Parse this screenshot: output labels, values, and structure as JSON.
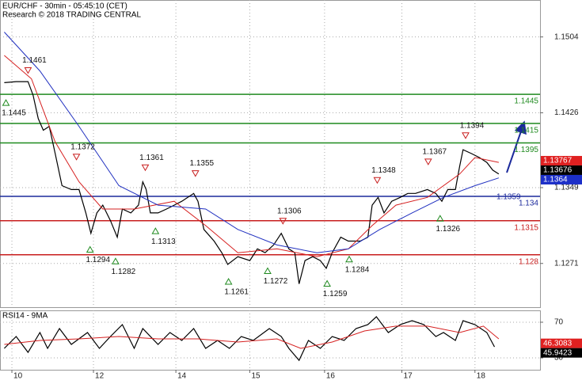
{
  "chart_data": [
    {
      "type": "line",
      "title": "EUR/CHF - 30min - 05:45:10 (CET)",
      "subtitle": "Research © 2018 TRADING CENTRAL",
      "xlim": [
        -14,
        621.6
      ],
      "xticks": [
        {
          "value": 0,
          "label": "10"
        },
        {
          "value": 96,
          "label": "12"
        },
        {
          "value": 193,
          "label": "14"
        },
        {
          "value": 280,
          "label": "15"
        },
        {
          "value": 368,
          "label": "16"
        },
        {
          "value": 459,
          "label": "17"
        },
        {
          "value": 545,
          "label": "18"
        }
      ],
      "ylim": [
        1.1226,
        1.1542
      ],
      "yticks": [
        1.1271,
        1.1349,
        1.1426,
        1.1504
      ],
      "grid": true,
      "series": [
        {
          "color": "#000000",
          "x": [
            -9,
            5,
            19,
            25,
            31,
            37,
            44,
            51,
            59,
            70,
            79,
            87,
            93,
            100,
            107,
            116,
            124,
            130,
            140,
            149,
            154,
            158,
            163,
            172,
            182,
            191,
            200,
            214,
            219,
            226,
            238,
            247,
            254,
            266,
            280,
            289,
            298,
            308,
            317,
            326,
            333,
            338,
            345,
            354,
            363,
            370,
            377,
            387,
            396,
            410,
            419,
            424,
            431,
            438,
            447,
            457,
            466,
            475,
            489,
            499,
            506,
            513,
            522,
            527,
            531,
            541,
            550,
            559,
            566,
            573
          ],
          "values": [
            1.1457,
            1.1458,
            1.1458,
            1.1444,
            1.142,
            1.1408,
            1.1412,
            1.1384,
            1.1351,
            1.1347,
            1.1347,
            1.1323,
            1.1302,
            1.1323,
            1.1331,
            1.1315,
            1.1298,
            1.1327,
            1.1323,
            1.1331,
            1.1355,
            1.1347,
            1.1323,
            1.1323,
            1.1327,
            1.1331,
            1.1335,
            1.1343,
            1.1335,
            1.1306,
            1.1294,
            1.1282,
            1.127,
            1.1278,
            1.1274,
            1.1286,
            1.1282,
            1.129,
            1.1302,
            1.1286,
            1.1282,
            1.125,
            1.1274,
            1.1278,
            1.1274,
            1.1266,
            1.1282,
            1.1298,
            1.1294,
            1.1294,
            1.1298,
            1.1331,
            1.1339,
            1.1323,
            1.1335,
            1.1339,
            1.1343,
            1.1343,
            1.1347,
            1.1343,
            1.1335,
            1.1347,
            1.1347,
            1.1371,
            1.1388,
            1.1384,
            1.138,
            1.1375,
            1.1367,
            1.1363
          ]
        },
        {
          "color": "#d62020",
          "x": [
            -9,
            23,
            51,
            79,
            107,
            144,
            191,
            228,
            266,
            312,
            359,
            396,
            424,
            452,
            489,
            527,
            545,
            573
          ],
          "values": [
            1.1485,
            1.1461,
            1.1396,
            1.1355,
            1.1327,
            1.1327,
            1.1335,
            1.131,
            1.1282,
            1.1286,
            1.1278,
            1.1286,
            1.131,
            1.1331,
            1.1339,
            1.1363,
            1.138,
            1.1375
          ]
        },
        {
          "color": "#2030c0",
          "x": [
            -9,
            33,
            79,
            126,
            172,
            228,
            266,
            312,
            359,
            396,
            433,
            471,
            508,
            545,
            573
          ],
          "values": [
            1.1509,
            1.1469,
            1.1412,
            1.1351,
            1.1331,
            1.1327,
            1.1306,
            1.129,
            1.1282,
            1.1286,
            1.1306,
            1.1323,
            1.1339,
            1.1351,
            1.1359
          ]
        }
      ],
      "levels": [
        {
          "value": 1.1445,
          "color": "#1f8a1f"
        },
        {
          "value": 1.1415,
          "color": "#1f8a1f"
        },
        {
          "value": 1.1395,
          "color": "#1f8a1f"
        },
        {
          "value": 1.134,
          "color": "#1c2a9c"
        },
        {
          "value": 1.1315,
          "color": "#c81e1e"
        },
        {
          "value": 1.128,
          "color": "#c81e1e"
        }
      ],
      "level_note": 1.1359,
      "annotations": [
        {
          "x": 19,
          "value": 1.1461,
          "kind": "high"
        },
        {
          "x": -7,
          "value": 1.1445,
          "kind": "low"
        },
        {
          "x": 76,
          "value": 1.1372,
          "kind": "high"
        },
        {
          "x": 92,
          "value": 1.1294,
          "kind": "low"
        },
        {
          "x": 122,
          "value": 1.1282,
          "kind": "low"
        },
        {
          "x": 157,
          "value": 1.1361,
          "kind": "high"
        },
        {
          "x": 169,
          "value": 1.1313,
          "kind": "low"
        },
        {
          "x": 216,
          "value": 1.1355,
          "kind": "high"
        },
        {
          "x": 255,
          "value": 1.1261,
          "kind": "low"
        },
        {
          "x": 319,
          "value": 1.1306,
          "kind": "high"
        },
        {
          "x": 301,
          "value": 1.1272,
          "kind": "low"
        },
        {
          "x": 371,
          "value": 1.1259,
          "kind": "low"
        },
        {
          "x": 397,
          "value": 1.1284,
          "kind": "low"
        },
        {
          "x": 430,
          "value": 1.1348,
          "kind": "high"
        },
        {
          "x": 490,
          "value": 1.1367,
          "kind": "high"
        },
        {
          "x": 504,
          "value": 1.1326,
          "kind": "low"
        },
        {
          "x": 534,
          "value": 1.1394,
          "kind": "high"
        }
      ],
      "last_values": [
        {
          "value": 1.13767,
          "color": "#e02020"
        },
        {
          "value": 1.13676,
          "color": "#000000"
        },
        {
          "value": 1.1364,
          "color": "#1c2fc8"
        }
      ]
    },
    {
      "type": "line",
      "title": "RSI14 - 9MA",
      "xlim": [
        -14,
        621.6
      ],
      "ylim": [
        16.7,
        83.3
      ],
      "yticks": [
        70,
        30
      ],
      "grid": true,
      "series": [
        {
          "color": "#000000",
          "x": [
            -9,
            5,
            19,
            33,
            42,
            56,
            70,
            89,
            103,
            116,
            130,
            144,
            154,
            172,
            186,
            200,
            214,
            228,
            242,
            256,
            270,
            284,
            303,
            317,
            326,
            338,
            349,
            363,
            377,
            391,
            405,
            419,
            429,
            443,
            457,
            471,
            485,
            499,
            508,
            522,
            531,
            545,
            559,
            568
          ],
          "values": [
            40.7,
            54.0,
            36.2,
            58.4,
            40.7,
            62.9,
            45.1,
            58.4,
            40.7,
            54.0,
            67.3,
            40.7,
            62.9,
            45.1,
            58.4,
            49.6,
            62.9,
            40.7,
            49.6,
            40.7,
            54.0,
            49.6,
            62.9,
            54.0,
            40.7,
            27.3,
            49.6,
            40.7,
            54.0,
            49.6,
            62.9,
            67.3,
            76.2,
            58.4,
            67.3,
            71.8,
            67.3,
            54.0,
            58.4,
            49.6,
            71.8,
            67.3,
            58.4,
            42.4
          ]
        },
        {
          "color": "#d62020",
          "x": [
            -9,
            33,
            79,
            126,
            172,
            219,
            266,
            312,
            340,
            377,
            415,
            452,
            489,
            527,
            555,
            573
          ],
          "values": [
            45.1,
            49.6,
            51.3,
            54.0,
            51.3,
            51.3,
            47.8,
            51.3,
            40.7,
            47.8,
            60.2,
            65.6,
            65.6,
            58.4,
            65.6,
            51.3
          ]
        }
      ],
      "last_values": [
        {
          "value": 46.3083,
          "color": "#e02020"
        },
        {
          "value": 45.9423,
          "color": "#000000"
        }
      ]
    }
  ]
}
